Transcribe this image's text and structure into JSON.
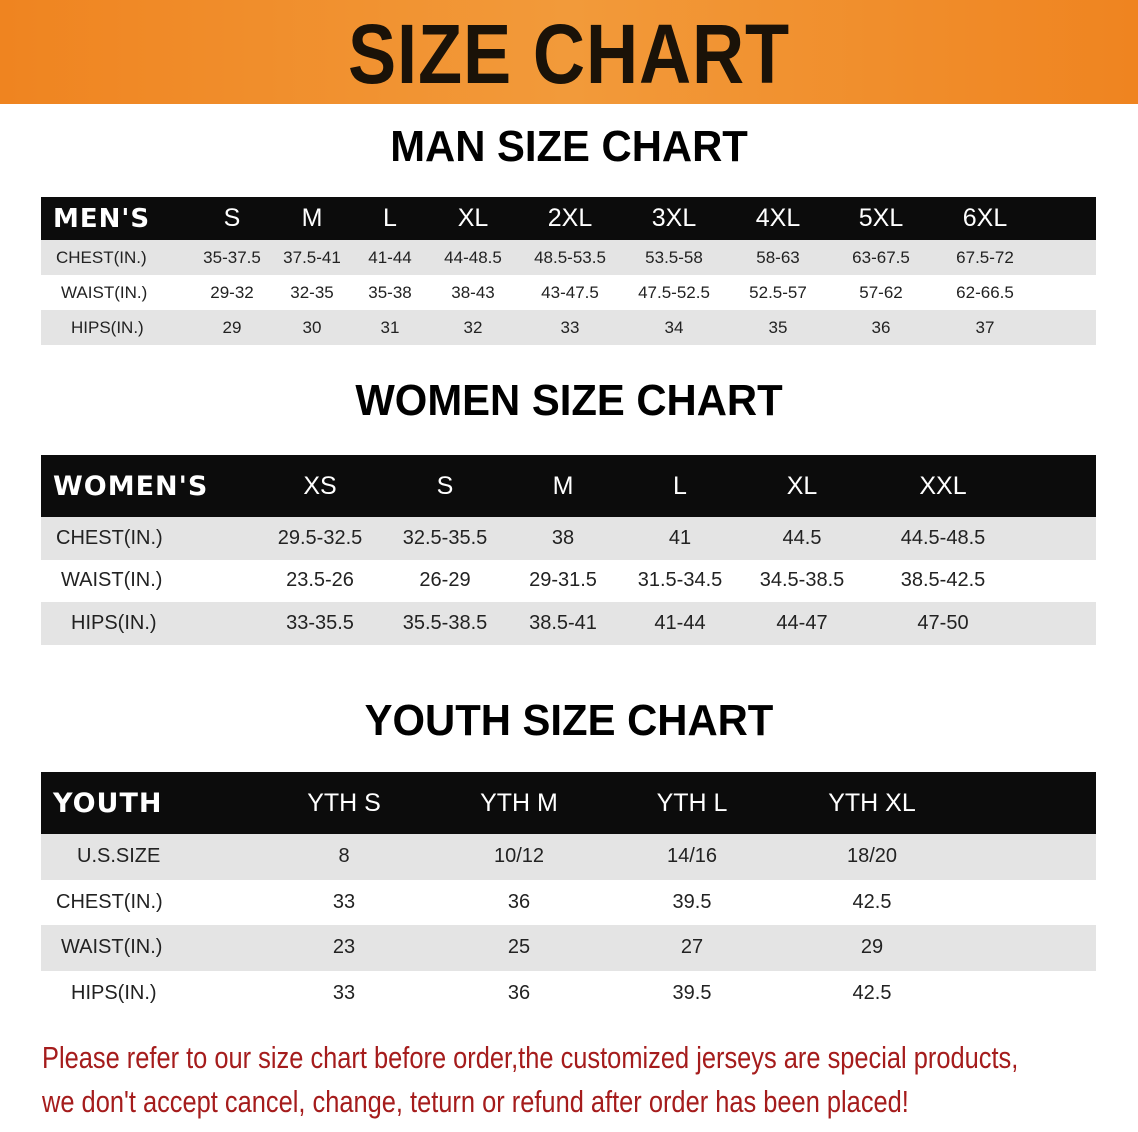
{
  "banner": {
    "title": "SIZE CHART",
    "color": "#ef8420"
  },
  "men": {
    "title": "MAN SIZE CHART",
    "header": "MEN'S",
    "sizes": [
      "S",
      "M",
      "L",
      "XL",
      "2XL",
      "3XL",
      "4XL",
      "5XL",
      "6XL"
    ],
    "rows": [
      {
        "label": "CHEST(IN.)",
        "values": [
          "35-37.5",
          "37.5-41",
          "41-44",
          "44-48.5",
          "48.5-53.5",
          "53.5-58",
          "58-63",
          "63-67.5",
          "67.5-72"
        ]
      },
      {
        "label": "WAIST(IN.)",
        "values": [
          "29-32",
          "32-35",
          "35-38",
          "38-43",
          "43-47.5",
          "47.5-52.5",
          "52.5-57",
          "57-62",
          "62-66.5"
        ]
      },
      {
        "label": "HIPS(IN.)",
        "values": [
          "29",
          "30",
          "31",
          "32",
          "33",
          "34",
          "35",
          "36",
          "37"
        ]
      }
    ]
  },
  "women": {
    "title": "WOMEN SIZE CHART",
    "header": "WOMEN'S",
    "sizes": [
      "XS",
      "S",
      "M",
      "L",
      "XL",
      "XXL"
    ],
    "rows": [
      {
        "label": "CHEST(IN.)",
        "values": [
          "29.5-32.5",
          "32.5-35.5",
          "38",
          "41",
          "44.5",
          "44.5-48.5"
        ]
      },
      {
        "label": "WAIST(IN.)",
        "values": [
          "23.5-26",
          "26-29",
          "29-31.5",
          "31.5-34.5",
          "34.5-38.5",
          "38.5-42.5"
        ]
      },
      {
        "label": "HIPS(IN.)",
        "values": [
          "33-35.5",
          "35.5-38.5",
          "38.5-41",
          "41-44",
          "44-47",
          "47-50"
        ]
      }
    ]
  },
  "youth": {
    "title": "YOUTH SIZE CHART",
    "header": "YOUTH",
    "sizes": [
      "YTH S",
      "YTH M",
      "YTH L",
      "YTH XL"
    ],
    "rows": [
      {
        "label": "U.S.SIZE",
        "values": [
          "8",
          "10/12",
          "14/16",
          "18/20"
        ]
      },
      {
        "label": "CHEST(IN.)",
        "values": [
          "33",
          "36",
          "39.5",
          "42.5"
        ]
      },
      {
        "label": "WAIST(IN.)",
        "values": [
          "23",
          "25",
          "27",
          "29"
        ]
      },
      {
        "label": "HIPS(IN.)",
        "values": [
          "33",
          "36",
          "39.5",
          "42.5"
        ]
      }
    ]
  },
  "notice": {
    "line1": "Please refer to our size chart before order,the customized jerseys are special products,",
    "line2": "we don't accept cancel, change, teturn or refund after order has been placed!",
    "color": "#a51c1c"
  }
}
